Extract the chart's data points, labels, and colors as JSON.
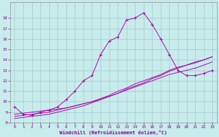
{
  "xlabel": "Windchill (Refroidissement éolien,°C)",
  "xlim": [
    -0.5,
    23.5
  ],
  "ylim": [
    8,
    19
  ],
  "yticks": [
    8,
    9,
    10,
    11,
    12,
    13,
    14,
    15,
    16,
    17,
    18
  ],
  "xticks": [
    0,
    1,
    2,
    3,
    4,
    5,
    6,
    7,
    8,
    9,
    10,
    11,
    12,
    13,
    14,
    15,
    16,
    17,
    18,
    19,
    20,
    21,
    22,
    23
  ],
  "bg_color": "#c8ecec",
  "grid_color": "#a0c8c8",
  "line_color": "#aa00aa",
  "main_line_x": [
    0,
    1,
    2,
    3,
    4,
    5,
    6,
    7,
    8,
    9,
    10,
    11,
    12,
    13,
    14,
    15,
    16,
    17,
    18,
    19,
    20,
    21,
    22,
    23
  ],
  "main_line_y": [
    9.5,
    8.8,
    8.7,
    9.0,
    9.2,
    9.5,
    10.2,
    11.0,
    12.0,
    12.5,
    14.5,
    15.8,
    16.2,
    17.8,
    18.0,
    18.5,
    17.4,
    16.0,
    14.5,
    13.0,
    12.5,
    12.5,
    12.7,
    13.0
  ],
  "line2_x": [
    0,
    1,
    2,
    3,
    4,
    5,
    6,
    7,
    8,
    9,
    10,
    11,
    12,
    13,
    14,
    15,
    16,
    17,
    18,
    19,
    20,
    21,
    22,
    23
  ],
  "line2_y": [
    8.8,
    8.9,
    9.0,
    9.1,
    9.2,
    9.3,
    9.4,
    9.6,
    9.8,
    10.0,
    10.2,
    10.5,
    10.8,
    11.1,
    11.4,
    11.7,
    12.0,
    12.3,
    12.6,
    12.8,
    13.0,
    13.2,
    13.5,
    13.8
  ],
  "line3_x": [
    0,
    1,
    2,
    3,
    4,
    5,
    6,
    7,
    8,
    9,
    10,
    11,
    12,
    13,
    14,
    15,
    16,
    17,
    18,
    19,
    20,
    21,
    22,
    23
  ],
  "line3_y": [
    8.6,
    8.7,
    8.8,
    8.9,
    9.0,
    9.2,
    9.4,
    9.6,
    9.8,
    10.0,
    10.3,
    10.6,
    11.0,
    11.3,
    11.7,
    12.0,
    12.3,
    12.6,
    13.0,
    13.3,
    13.5,
    13.8,
    14.0,
    14.3
  ],
  "line4_x": [
    0,
    1,
    2,
    3,
    4,
    5,
    6,
    7,
    8,
    9,
    10,
    11,
    12,
    13,
    14,
    15,
    16,
    17,
    18,
    19,
    20,
    21,
    22,
    23
  ],
  "line4_y": [
    8.4,
    8.5,
    8.6,
    8.7,
    8.8,
    9.0,
    9.2,
    9.4,
    9.6,
    9.9,
    10.2,
    10.5,
    10.8,
    11.2,
    11.5,
    11.8,
    12.2,
    12.5,
    12.9,
    13.2,
    13.5,
    13.7,
    14.0,
    14.3
  ]
}
